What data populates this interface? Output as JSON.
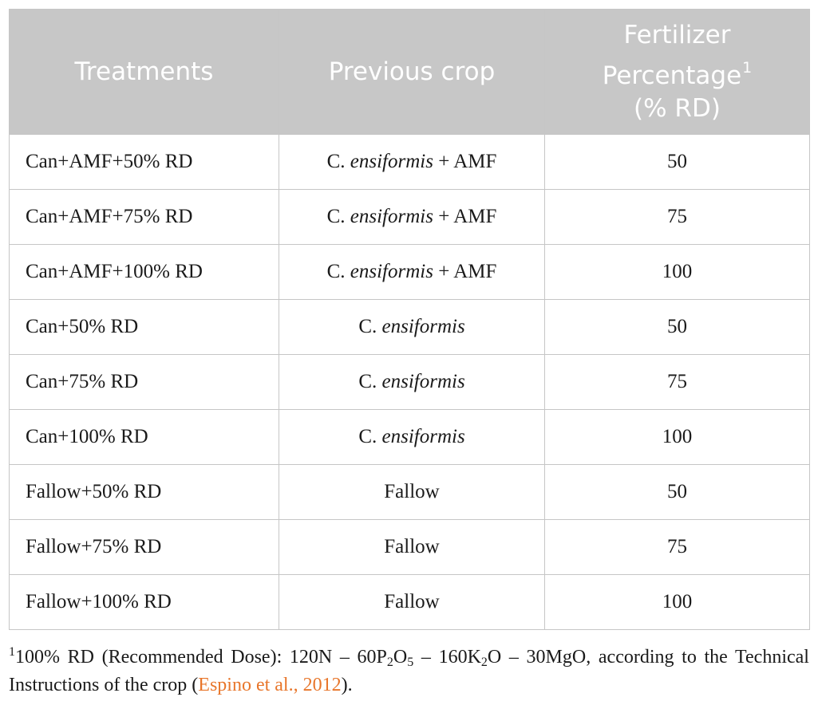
{
  "table": {
    "headers": {
      "treatments": "Treatments",
      "previous_crop": "Previous crop",
      "fertilizer_line1": "Fertilizer",
      "fertilizer_line2": "Percentage",
      "fertilizer_sup": "1",
      "fertilizer_line3": "(% RD)"
    },
    "rows": [
      {
        "treatment": "Can+AMF+50% RD",
        "crop_prefix": "C. ",
        "crop_italic": "ensiformis",
        "crop_suffix": " + AMF",
        "percent": "50"
      },
      {
        "treatment": "Can+AMF+75% RD",
        "crop_prefix": "C. ",
        "crop_italic": "ensiformis",
        "crop_suffix": " + AMF",
        "percent": "75"
      },
      {
        "treatment": "Can+AMF+100% RD",
        "crop_prefix": "C. ",
        "crop_italic": "ensiformis",
        "crop_suffix": " + AMF",
        "percent": "100"
      },
      {
        "treatment": "Can+50% RD",
        "crop_prefix": "C. ",
        "crop_italic": "ensiformis",
        "crop_suffix": "",
        "percent": "50"
      },
      {
        "treatment": "Can+75% RD",
        "crop_prefix": "C. ",
        "crop_italic": "ensiformis",
        "crop_suffix": "",
        "percent": "75"
      },
      {
        "treatment": "Can+100% RD",
        "crop_prefix": "C. ",
        "crop_italic": "ensiformis",
        "crop_suffix": "",
        "percent": "100"
      },
      {
        "treatment": "Fallow+50% RD",
        "crop_prefix": "Fallow",
        "crop_italic": "",
        "crop_suffix": "",
        "percent": "50"
      },
      {
        "treatment": "Fallow+75% RD",
        "crop_prefix": "Fallow",
        "crop_italic": "",
        "crop_suffix": "",
        "percent": "75"
      },
      {
        "treatment": "Fallow+100% RD",
        "crop_prefix": "Fallow",
        "crop_italic": "",
        "crop_suffix": "",
        "percent": "100"
      }
    ]
  },
  "footnote": {
    "marker": "1",
    "part1": "100% RD (Recommended Dose): 120N – 60P",
    "sub1": "2",
    "part2": "O",
    "sub2": "5",
    "part3": " – 160K",
    "sub3": "2",
    "part4": "O – 30MgO, according to the Technical Instructions of the crop (",
    "citation": "Espino et al., 2012",
    "part5": ")."
  }
}
